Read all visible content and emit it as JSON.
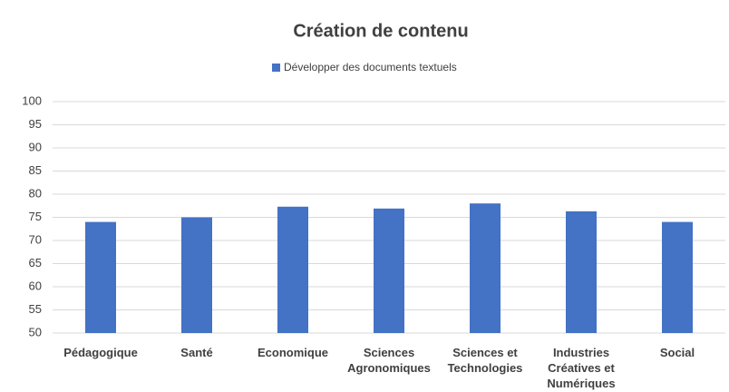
{
  "chart_data": {
    "type": "bar",
    "title": "Création de contenu",
    "series": [
      {
        "name": "Développer des documents textuels",
        "color": "#4472c4",
        "values": [
          74,
          75,
          77.3,
          76.9,
          78,
          76.3,
          74
        ]
      }
    ],
    "categories": [
      "Pédagogique",
      "Santé",
      "Economique",
      "Sciences Agronomiques",
      "Sciences et Technologies",
      "Industries Créatives et Numériques",
      "Social"
    ],
    "ylim": [
      50,
      100
    ],
    "yticks": [
      50,
      55,
      60,
      65,
      70,
      75,
      80,
      85,
      90,
      95,
      100
    ],
    "grid": true,
    "legend": "top"
  }
}
